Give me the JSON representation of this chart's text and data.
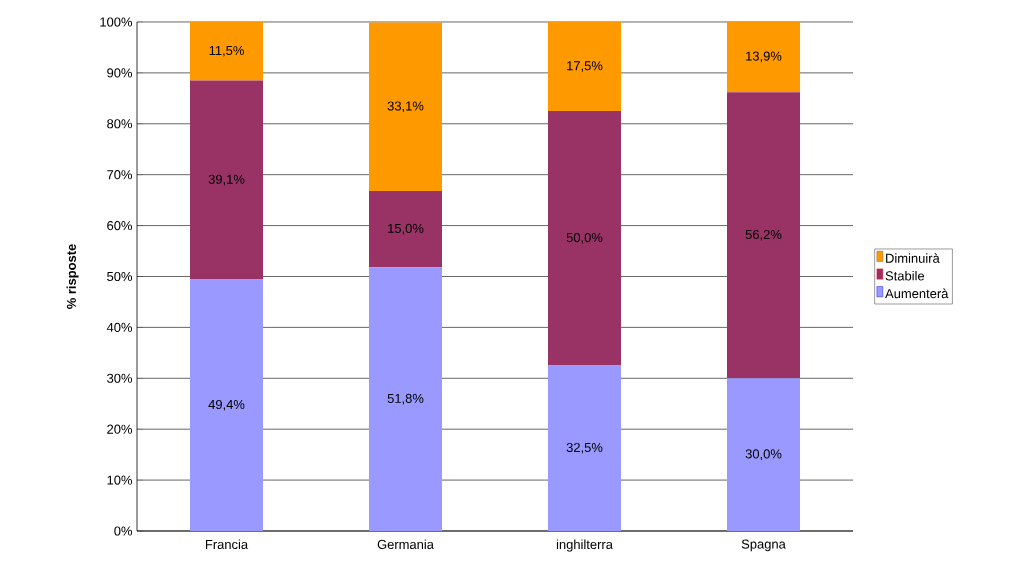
{
  "chart_data": {
    "type": "bar",
    "stacked": true,
    "ylabel": "% risposte",
    "categories": [
      "Francia",
      "Germania",
      "inghilterra",
      "Spagna"
    ],
    "series": [
      {
        "name": "Aumenterà",
        "color": "#9999ff",
        "values": [
          49.4,
          51.8,
          32.5,
          30.0
        ],
        "value_labels": [
          "49,4%",
          "51,8%",
          "32,5%",
          "30,0%"
        ]
      },
      {
        "name": "Stabile",
        "color": "#993366",
        "values": [
          39.1,
          15.0,
          50.0,
          56.2
        ],
        "value_labels": [
          "39,1%",
          "15,0%",
          "50,0%",
          "56,2%"
        ]
      },
      {
        "name": "Diminuirà",
        "color": "#ff9900",
        "values": [
          11.5,
          33.1,
          17.5,
          13.9
        ],
        "value_labels": [
          "11,5%",
          "33,1%",
          "17,5%",
          "13,9%"
        ]
      }
    ],
    "ylim": [
      0,
      100
    ],
    "yticks": [
      {
        "value": 0,
        "label": "0%"
      },
      {
        "value": 10,
        "label": "10%"
      },
      {
        "value": 20,
        "label": "20%"
      },
      {
        "value": 30,
        "label": "30%"
      },
      {
        "value": 40,
        "label": "40%"
      },
      {
        "value": 50,
        "label": "50%"
      },
      {
        "value": 60,
        "label": "60%"
      },
      {
        "value": 70,
        "label": "70%"
      },
      {
        "value": 80,
        "label": "80%"
      },
      {
        "value": 90,
        "label": "90%"
      },
      {
        "value": 100,
        "label": "100%"
      }
    ],
    "grid": "y",
    "legend": "right"
  }
}
